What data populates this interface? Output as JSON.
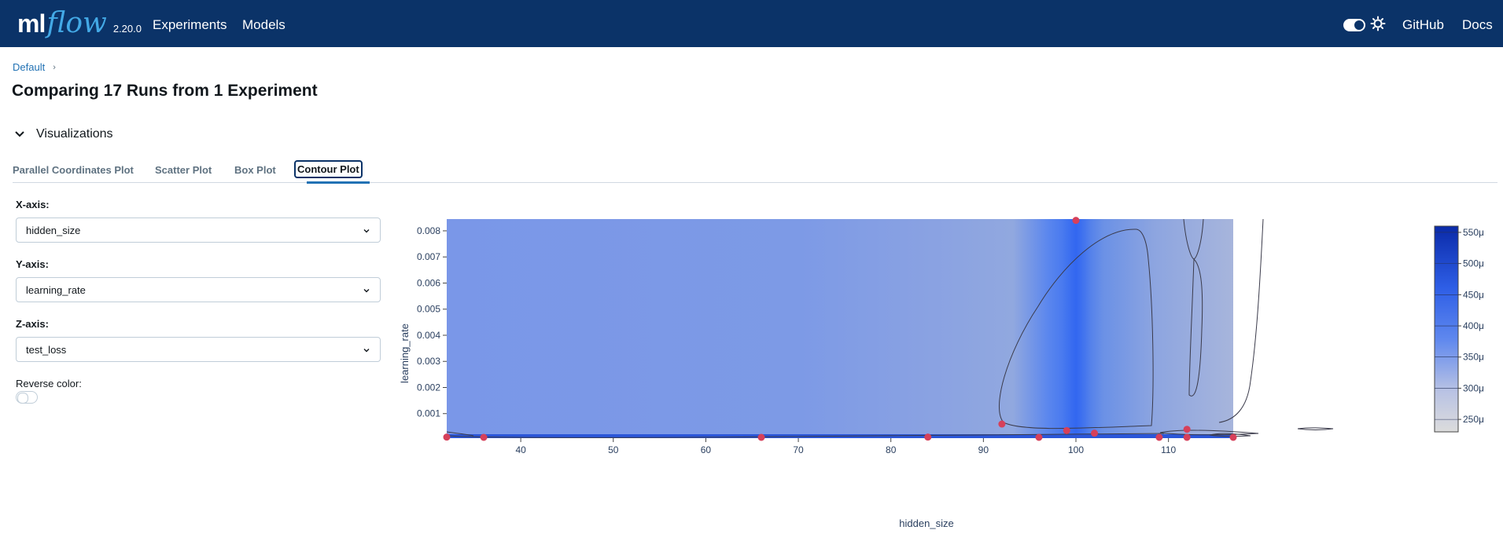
{
  "header": {
    "logo_ml": "ml",
    "logo_flow": "flow",
    "version": "2.20.0",
    "nav": [
      "Experiments",
      "Models"
    ],
    "right_links": [
      "GitHub",
      "Docs"
    ],
    "icons": [
      "theme-toggle",
      "sun-icon"
    ]
  },
  "breadcrumb": {
    "item": "Default",
    "separator": "›"
  },
  "page": {
    "title": "Comparing 17 Runs from 1 Experiment"
  },
  "section": {
    "title": "Visualizations",
    "icon": "chevron-down-icon"
  },
  "tabs": [
    "Parallel Coordinates Plot",
    "Scatter Plot",
    "Box Plot",
    "Contour Plot"
  ],
  "active_tab": "Contour Plot",
  "controls": {
    "x_label": "X-axis:",
    "x_value": "hidden_size",
    "y_label": "Y-axis:",
    "y_value": "learning_rate",
    "z_label": "Z-axis:",
    "z_value": "test_loss",
    "reverse_label": "Reverse color:"
  },
  "colors": {
    "header_bg": "#0b3368",
    "link": "#2272b4",
    "point": "#d6405a"
  },
  "chart_data": {
    "type": "contour",
    "xlabel": "hidden_size",
    "ylabel": "learning_rate",
    "xlim": [
      32,
      117
    ],
    "ylim": [
      6e-05,
      0.00845
    ],
    "x_ticks": [
      40,
      50,
      60,
      70,
      80,
      90,
      100,
      110
    ],
    "y_ticks": [
      0.001,
      0.002,
      0.003,
      0.004,
      0.005,
      0.006,
      0.007,
      0.008
    ],
    "y_tick_labels": [
      "0.001",
      "0.002",
      "0.003",
      "0.004",
      "0.005",
      "0.006",
      "0.007",
      "0.008"
    ],
    "colorbar_ticks": [
      250,
      300,
      350,
      400,
      450,
      500,
      550
    ],
    "colorbar_labels": [
      "250μ",
      "300μ",
      "350μ",
      "400μ",
      "450μ",
      "500μ",
      "550μ"
    ],
    "colorbar_range": [
      230,
      560
    ],
    "points": [
      {
        "x": 32,
        "y": 0.0001
      },
      {
        "x": 36,
        "y": 5e-05
      },
      {
        "x": 66,
        "y": 1e-05
      },
      {
        "x": 84,
        "y": 0.0001
      },
      {
        "x": 92,
        "y": 0.0006
      },
      {
        "x": 96,
        "y": 1e-05
      },
      {
        "x": 99,
        "y": 0.00035
      },
      {
        "x": 100,
        "y": 0.0084
      },
      {
        "x": 102,
        "y": 0.00025
      },
      {
        "x": 109,
        "y": 1e-05
      },
      {
        "x": 112,
        "y": 0.0004
      },
      {
        "x": 112,
        "y": 1e-05
      },
      {
        "x": 117,
        "y": 2e-05
      }
    ]
  }
}
